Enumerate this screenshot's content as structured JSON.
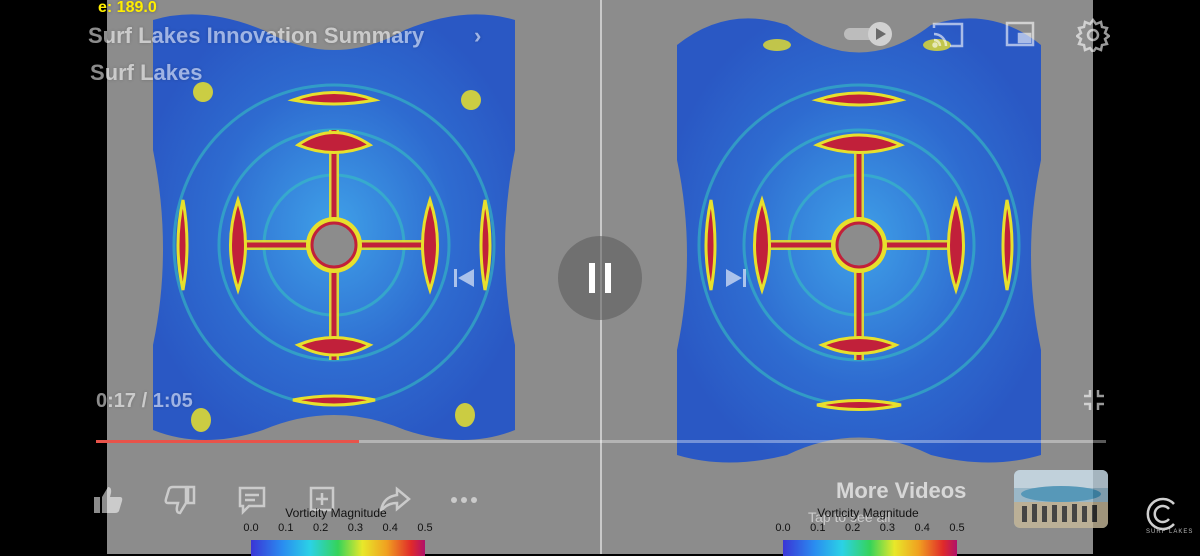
{
  "video": {
    "title": "Surf Lakes Innovation Summary",
    "channel": "Surf Lakes",
    "time_overlay": "e: 189.0",
    "current_time": "0:17",
    "duration": "1:05",
    "timestamp": "0:17 / 1:05",
    "progress_fraction": 0.26,
    "state": "paused-overlay"
  },
  "colorbar": {
    "title": "Vorticity Magnitude",
    "ticks": [
      "0.0",
      "0.1",
      "0.2",
      "0.3",
      "0.4",
      "0.5"
    ]
  },
  "end_screen": {
    "more_videos": "More Videos",
    "more_sub": "Tap to see all"
  },
  "brand": {
    "text": "SURF LAKES"
  },
  "icons": {
    "pause": "pause-icon",
    "previous": "previous-icon",
    "next": "next-icon",
    "autoplay": "autoplay-toggle-icon",
    "cast": "cast-icon",
    "miniplayer": "miniplayer-icon",
    "settings": "gear-icon",
    "fullscreen_exit": "fullscreen-exit-icon",
    "like": "thumbs-up-icon",
    "dislike": "thumbs-down-icon",
    "comment": "comment-icon",
    "save": "add-to-playlist-icon",
    "share": "share-icon",
    "more": "more-icon"
  },
  "colors": {
    "progress": "#e8534a",
    "field_base": "#2f66c8",
    "vortex_red": "#c0203a",
    "vortex_yellow": "#e6e22c"
  }
}
